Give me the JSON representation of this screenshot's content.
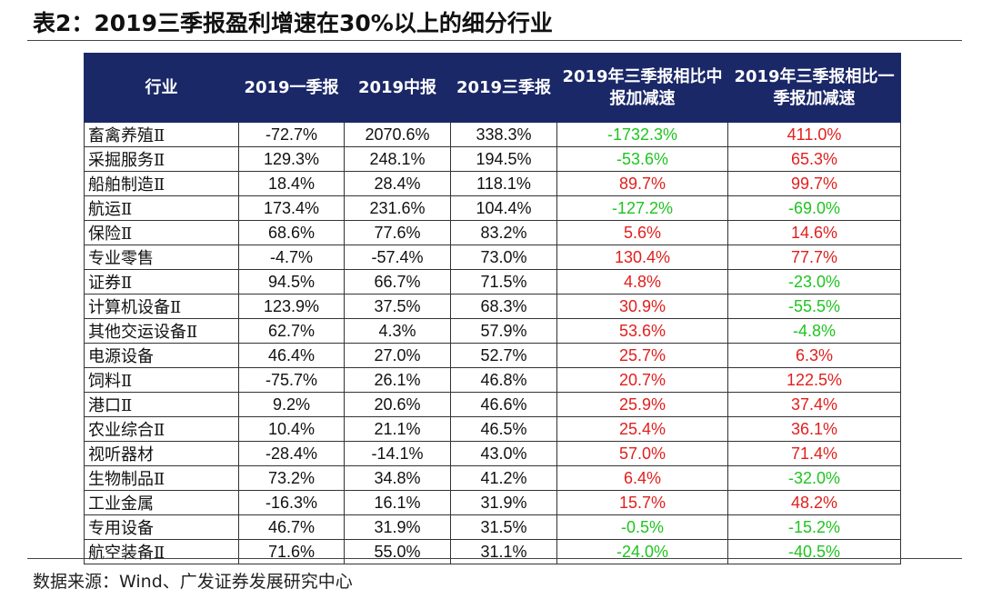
{
  "header": {
    "title": "表2：2019三季报盈利增速在30%以上的细分行业"
  },
  "table": {
    "columns": [
      "行业",
      "2019一季报",
      "2019中报",
      "2019三季报",
      "2019年三季报相比中报加减速",
      "2019年三季报相比一季报加减速"
    ],
    "rows": [
      [
        "畜禽养殖Ⅱ",
        "-72.7%",
        "2070.6%",
        "338.3%",
        "-1732.3%",
        "411.0%"
      ],
      [
        "采掘服务Ⅱ",
        "129.3%",
        "248.1%",
        "194.5%",
        "-53.6%",
        "65.3%"
      ],
      [
        "船舶制造Ⅱ",
        "18.4%",
        "28.4%",
        "118.1%",
        "89.7%",
        "99.7%"
      ],
      [
        "航运Ⅱ",
        "173.4%",
        "231.6%",
        "104.4%",
        "-127.2%",
        "-69.0%"
      ],
      [
        "保险Ⅱ",
        "68.6%",
        "77.6%",
        "83.2%",
        "5.6%",
        "14.6%"
      ],
      [
        "专业零售",
        "-4.7%",
        "-57.4%",
        "73.0%",
        "130.4%",
        "77.7%"
      ],
      [
        "证券Ⅱ",
        "94.5%",
        "66.7%",
        "71.5%",
        "4.8%",
        "-23.0%"
      ],
      [
        "计算机设备Ⅱ",
        "123.9%",
        "37.5%",
        "68.3%",
        "30.9%",
        "-55.5%"
      ],
      [
        "其他交运设备Ⅱ",
        "62.7%",
        "4.3%",
        "57.9%",
        "53.6%",
        "-4.8%"
      ],
      [
        "电源设备",
        "46.4%",
        "27.0%",
        "52.7%",
        "25.7%",
        "6.3%"
      ],
      [
        "饲料Ⅱ",
        "-75.7%",
        "26.1%",
        "46.8%",
        "20.7%",
        "122.5%"
      ],
      [
        "港口Ⅱ",
        "9.2%",
        "20.6%",
        "46.6%",
        "25.9%",
        "37.4%"
      ],
      [
        "农业综合Ⅱ",
        "10.4%",
        "21.1%",
        "46.5%",
        "25.4%",
        "36.1%"
      ],
      [
        "视听器材",
        "-28.4%",
        "-14.1%",
        "43.0%",
        "57.0%",
        "71.4%"
      ],
      [
        "生物制品Ⅱ",
        "73.2%",
        "34.8%",
        "41.2%",
        "6.4%",
        "-32.0%"
      ],
      [
        "工业金属",
        "-16.3%",
        "16.1%",
        "31.9%",
        "15.7%",
        "48.2%"
      ],
      [
        "专用设备",
        "46.7%",
        "31.9%",
        "31.5%",
        "-0.5%",
        "-15.2%"
      ],
      [
        "航空装备Ⅱ",
        "71.6%",
        "55.0%",
        "31.1%",
        "-24.0%",
        "-40.5%"
      ]
    ]
  },
  "source": "数据来源：Wind、广发证券发展研究中心"
}
